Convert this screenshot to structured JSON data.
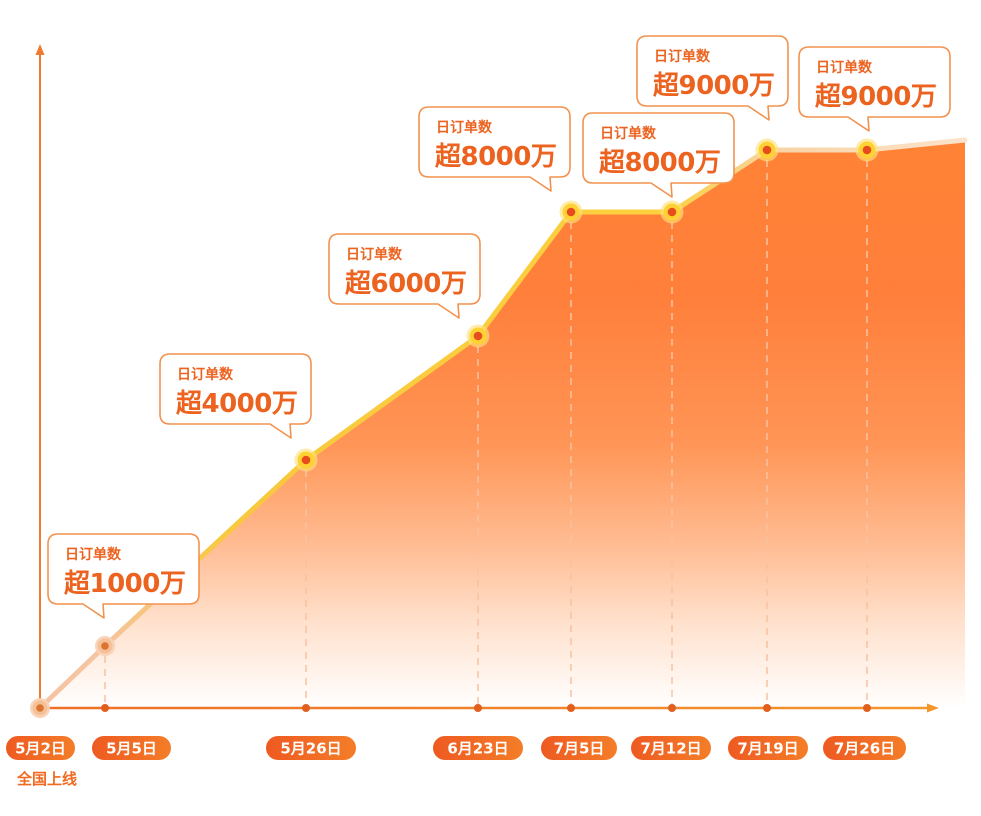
{
  "chart_data": {
    "type": "area",
    "x": [
      "5月2日",
      "5月5日",
      "5月26日",
      "6月23日",
      "7月5日",
      "7月12日",
      "7月19日",
      "7月26日"
    ],
    "series": [
      {
        "values": [
          0,
          1000,
          4000,
          6000,
          8000,
          8000,
          9000,
          9000
        ]
      }
    ],
    "x_notes": [
      {
        "at": 0,
        "text": "全国上线"
      }
    ],
    "annotations": [
      {
        "at": 1,
        "title": "日订单数",
        "text": "超1000万"
      },
      {
        "at": 2,
        "title": "日订单数",
        "text": "超4000万"
      },
      {
        "at": 3,
        "title": "日订单数",
        "text": "超6000万"
      },
      {
        "at": 4,
        "title": "日订单数",
        "text": "超8000万"
      },
      {
        "at": 5,
        "title": "日订单数",
        "text": "超8000万"
      },
      {
        "at": 6,
        "title": "日订单数",
        "text": "超9000万"
      },
      {
        "at": 7,
        "title": "日订单数",
        "text": "超9000万"
      }
    ],
    "grid": false
  },
  "colors": {
    "accent": "#f06a22",
    "axis": "#f07a2f",
    "line": "#f9cd3a",
    "marker": "#ffd233",
    "marker_center": "#e64c1d",
    "area_top": "#ff8334",
    "callout_border": "#f2924f",
    "callout_text": "#ec6320",
    "drop_line": "#f8c2a0"
  }
}
